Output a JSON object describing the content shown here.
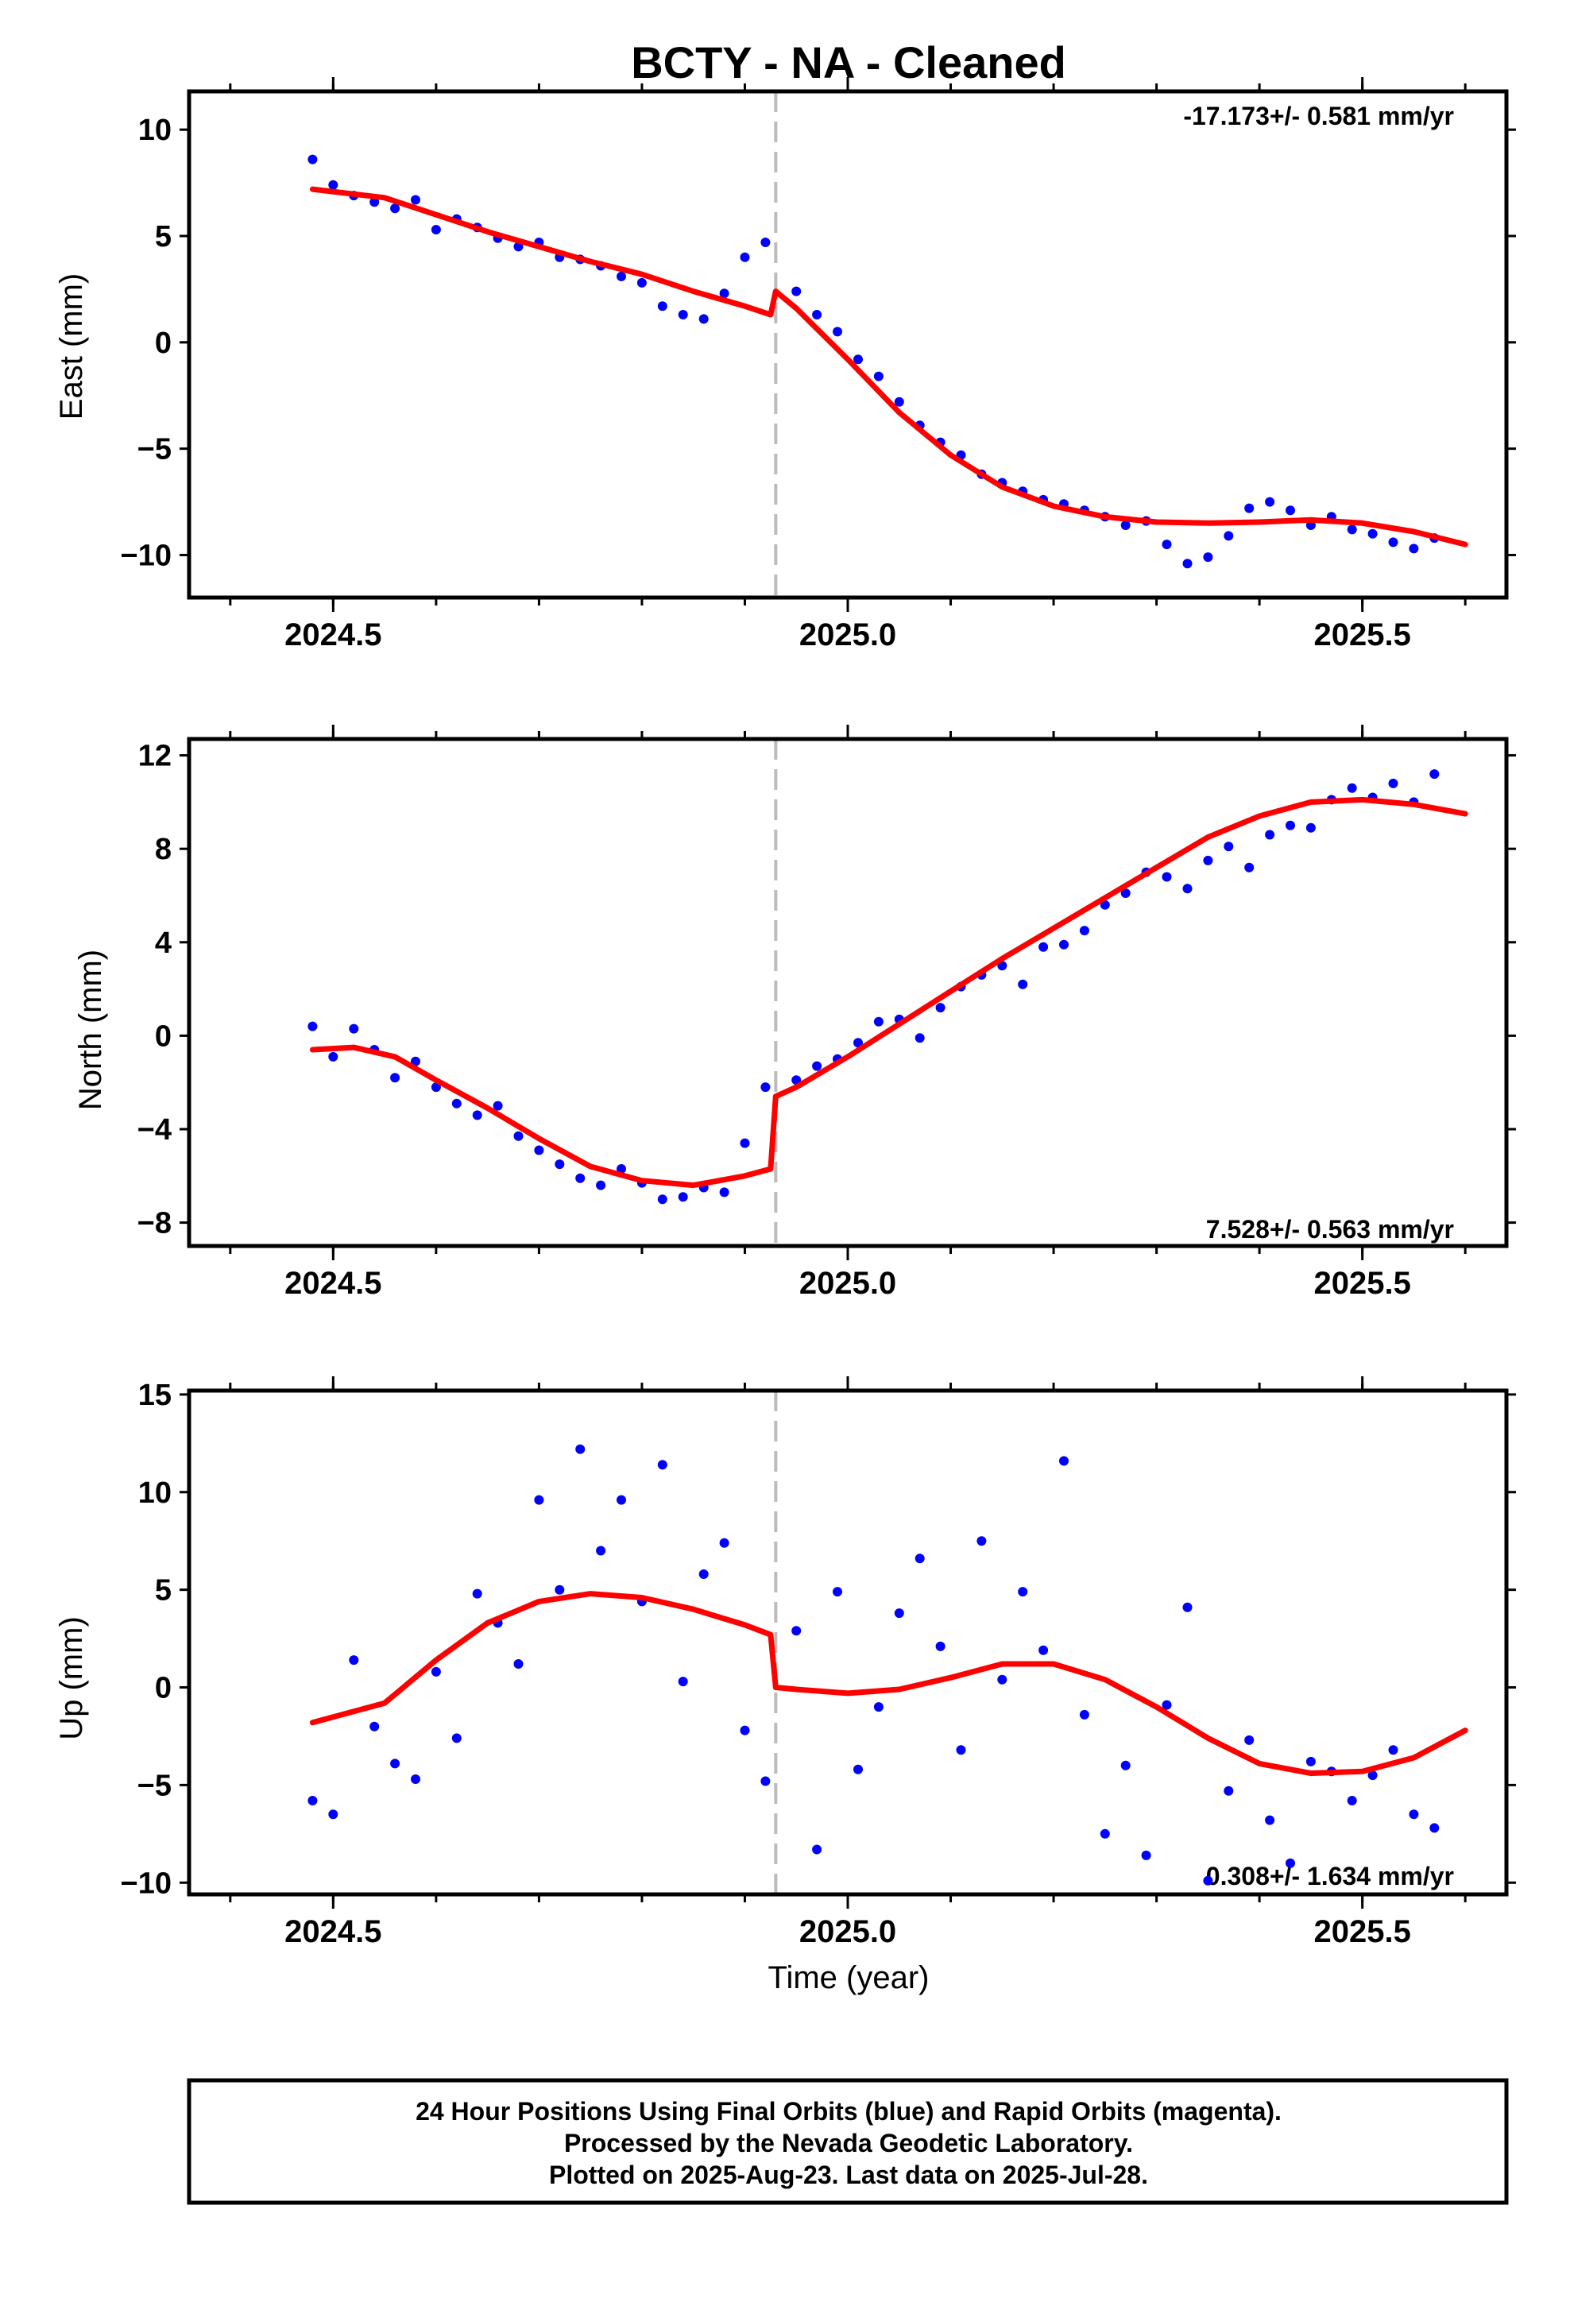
{
  "figure": {
    "title": "BCTY  - NA - Cleaned",
    "xlabel": "Time (year)",
    "footer": [
      "24 Hour Positions Using Final Orbits (blue) and Rapid Orbits (magenta).",
      "Processed by the Nevada Geodetic Laboratory.",
      "Plotted on 2025-Aug-23. Last data on 2025-Jul-28."
    ],
    "colors": {
      "points": "#0000ff",
      "model": "#ff0000",
      "event_line": "#bbbbbb",
      "frame": "#000000"
    }
  },
  "chart_data": [
    {
      "type": "scatter",
      "ylabel": "East (mm)",
      "rate_text": "-17.173+/- 0.581 mm/yr",
      "rate_position": "top-right",
      "xlim": [
        2024.36,
        2025.64
      ],
      "ylim": [
        -12.0,
        11.8
      ],
      "x_ticks": [
        2024.5,
        2025.0,
        2025.5
      ],
      "x_tick_labels": [
        "2024.5",
        "2025.0",
        "2025.5"
      ],
      "y_ticks": [
        -10,
        -5,
        0,
        5,
        10
      ],
      "y_tick_labels": [
        "−10",
        "−5",
        "0",
        "5",
        "10"
      ],
      "event_line_x": 2024.93,
      "grid": false,
      "series": [
        {
          "role": "observations",
          "x": [
            2024.48,
            2024.5,
            2024.52,
            2024.54,
            2024.56,
            2024.58,
            2024.6,
            2024.62,
            2024.64,
            2024.66,
            2024.68,
            2024.7,
            2024.72,
            2024.74,
            2024.76,
            2024.78,
            2024.8,
            2024.82,
            2024.84,
            2024.86,
            2024.88,
            2024.9,
            2024.92,
            2024.95,
            2024.97,
            2024.99,
            2025.01,
            2025.03,
            2025.05,
            2025.07,
            2025.09,
            2025.11,
            2025.13,
            2025.15,
            2025.17,
            2025.19,
            2025.21,
            2025.23,
            2025.25,
            2025.27,
            2025.29,
            2025.31,
            2025.33,
            2025.35,
            2025.37,
            2025.39,
            2025.41,
            2025.43,
            2025.45,
            2025.47,
            2025.49,
            2025.51,
            2025.53,
            2025.55,
            2025.57
          ],
          "y": [
            8.6,
            7.4,
            6.9,
            6.6,
            6.3,
            6.7,
            5.3,
            5.8,
            5.4,
            4.9,
            4.5,
            4.7,
            4.0,
            3.9,
            3.6,
            3.1,
            2.8,
            1.7,
            1.3,
            1.1,
            2.3,
            4.0,
            4.7,
            2.4,
            1.3,
            0.5,
            -0.8,
            -1.6,
            -2.8,
            -3.9,
            -4.7,
            -5.3,
            -6.2,
            -6.6,
            -7.0,
            -7.4,
            -7.6,
            -7.9,
            -8.2,
            -8.6,
            -8.4,
            -9.5,
            -10.4,
            -10.1,
            -9.1,
            -7.8,
            -7.5,
            -7.9,
            -8.6,
            -8.2,
            -8.8,
            -9.0,
            -9.4,
            -9.7,
            -9.2
          ]
        },
        {
          "role": "model",
          "x": [
            2024.48,
            2024.55,
            2024.6,
            2024.65,
            2024.7,
            2024.75,
            2024.8,
            2024.85,
            2024.9,
            2024.925,
            2024.93,
            2024.95,
            2025.0,
            2025.05,
            2025.1,
            2025.15,
            2025.2,
            2025.25,
            2025.3,
            2025.35,
            2025.4,
            2025.45,
            2025.5,
            2025.55,
            2025.6
          ],
          "y": [
            7.2,
            6.8,
            6.0,
            5.2,
            4.5,
            3.8,
            3.2,
            2.4,
            1.7,
            1.3,
            2.4,
            1.6,
            -0.8,
            -3.3,
            -5.3,
            -6.8,
            -7.7,
            -8.2,
            -8.45,
            -8.5,
            -8.45,
            -8.35,
            -8.5,
            -8.9,
            -9.5
          ]
        }
      ]
    },
    {
      "type": "scatter",
      "ylabel": "North (mm)",
      "rate_text": "7.528+/- 0.563 mm/yr",
      "rate_position": "bottom-right",
      "xlim": [
        2024.36,
        2025.64
      ],
      "ylim": [
        -9.0,
        12.7
      ],
      "x_ticks": [
        2024.5,
        2025.0,
        2025.5
      ],
      "x_tick_labels": [
        "2024.5",
        "2025.0",
        "2025.5"
      ],
      "y_ticks": [
        -8,
        -4,
        0,
        4,
        8,
        12
      ],
      "y_tick_labels": [
        "−8",
        "−4",
        "0",
        "4",
        "8",
        "12"
      ],
      "event_line_x": 2024.93,
      "grid": false,
      "series": [
        {
          "role": "observations",
          "x": [
            2024.48,
            2024.5,
            2024.52,
            2024.54,
            2024.56,
            2024.58,
            2024.6,
            2024.62,
            2024.64,
            2024.66,
            2024.68,
            2024.7,
            2024.72,
            2024.74,
            2024.76,
            2024.78,
            2024.8,
            2024.82,
            2024.84,
            2024.86,
            2024.88,
            2024.9,
            2024.92,
            2024.95,
            2024.97,
            2024.99,
            2025.01,
            2025.03,
            2025.05,
            2025.07,
            2025.09,
            2025.11,
            2025.13,
            2025.15,
            2025.17,
            2025.19,
            2025.21,
            2025.23,
            2025.25,
            2025.27,
            2025.29,
            2025.31,
            2025.33,
            2025.35,
            2025.37,
            2025.39,
            2025.41,
            2025.43,
            2025.45,
            2025.47,
            2025.49,
            2025.51,
            2025.53,
            2025.55,
            2025.57
          ],
          "y": [
            0.4,
            -0.9,
            0.3,
            -0.6,
            -1.8,
            -1.1,
            -2.2,
            -2.9,
            -3.4,
            -3.0,
            -4.3,
            -4.9,
            -5.5,
            -6.1,
            -6.4,
            -5.7,
            -6.3,
            -7.0,
            -6.9,
            -6.5,
            -6.7,
            -4.6,
            -2.2,
            -1.9,
            -1.3,
            -1.0,
            -0.3,
            0.6,
            0.7,
            -0.1,
            1.2,
            2.1,
            2.6,
            3.0,
            2.2,
            3.8,
            3.9,
            4.5,
            5.6,
            6.1,
            7.0,
            6.8,
            6.3,
            7.5,
            8.1,
            7.2,
            8.6,
            9.0,
            8.9,
            10.1,
            10.6,
            10.2,
            10.8,
            10.0,
            11.2
          ]
        },
        {
          "role": "model",
          "x": [
            2024.48,
            2024.52,
            2024.56,
            2024.6,
            2024.65,
            2024.7,
            2024.75,
            2024.8,
            2024.85,
            2024.9,
            2024.925,
            2024.93,
            2024.95,
            2025.0,
            2025.05,
            2025.1,
            2025.15,
            2025.2,
            2025.25,
            2025.3,
            2025.35,
            2025.4,
            2025.45,
            2025.5,
            2025.55,
            2025.6
          ],
          "y": [
            -0.6,
            -0.5,
            -0.9,
            -1.9,
            -3.1,
            -4.4,
            -5.6,
            -6.2,
            -6.4,
            -6.0,
            -5.7,
            -2.6,
            -2.2,
            -0.9,
            0.5,
            1.9,
            3.3,
            4.6,
            5.9,
            7.2,
            8.5,
            9.4,
            10.0,
            10.1,
            9.9,
            9.5
          ]
        }
      ]
    },
    {
      "type": "scatter",
      "ylabel": "Up (mm)",
      "rate_text": "0.308+/- 1.634 mm/yr",
      "rate_position": "bottom-right",
      "xlim": [
        2024.36,
        2025.64
      ],
      "ylim": [
        -10.6,
        15.2
      ],
      "x_ticks": [
        2024.5,
        2025.0,
        2025.5
      ],
      "x_tick_labels": [
        "2024.5",
        "2025.0",
        "2025.5"
      ],
      "y_ticks": [
        -10,
        -5,
        0,
        5,
        10,
        15
      ],
      "y_tick_labels": [
        "−10",
        "−5",
        "0",
        "5",
        "10",
        "15"
      ],
      "event_line_x": 2024.93,
      "grid": false,
      "series": [
        {
          "role": "observations",
          "x": [
            2024.48,
            2024.5,
            2024.52,
            2024.54,
            2024.56,
            2024.58,
            2024.6,
            2024.62,
            2024.64,
            2024.66,
            2024.68,
            2024.7,
            2024.72,
            2024.74,
            2024.76,
            2024.78,
            2024.8,
            2024.82,
            2024.84,
            2024.86,
            2024.88,
            2024.9,
            2024.92,
            2024.95,
            2024.97,
            2024.99,
            2025.01,
            2025.03,
            2025.05,
            2025.07,
            2025.09,
            2025.11,
            2025.13,
            2025.15,
            2025.17,
            2025.19,
            2025.21,
            2025.23,
            2025.25,
            2025.27,
            2025.29,
            2025.31,
            2025.33,
            2025.35,
            2025.37,
            2025.39,
            2025.41,
            2025.43,
            2025.45,
            2025.47,
            2025.49,
            2025.51,
            2025.53,
            2025.55,
            2025.57
          ],
          "y": [
            -5.8,
            -6.5,
            1.4,
            -2.0,
            -3.9,
            -4.7,
            0.8,
            -2.6,
            4.8,
            3.3,
            1.2,
            9.6,
            5.0,
            12.2,
            7.0,
            9.6,
            4.4,
            11.4,
            0.3,
            5.8,
            7.4,
            -2.2,
            -4.8,
            2.9,
            -8.3,
            4.9,
            -4.2,
            -1.0,
            3.8,
            6.6,
            2.1,
            -3.2,
            7.5,
            0.4,
            4.9,
            1.9,
            11.6,
            -1.4,
            -7.5,
            -4.0,
            -8.6,
            -0.9,
            4.1,
            -9.9,
            -5.3,
            -2.7,
            -6.8,
            -9.0,
            -3.8,
            -4.3,
            -5.8,
            -4.5,
            -3.2,
            -6.5,
            -7.2
          ]
        },
        {
          "role": "model",
          "x": [
            2024.48,
            2024.55,
            2024.6,
            2024.65,
            2024.7,
            2024.75,
            2024.8,
            2024.85,
            2024.9,
            2024.925,
            2024.93,
            2024.95,
            2025.0,
            2025.05,
            2025.1,
            2025.15,
            2025.2,
            2025.25,
            2025.3,
            2025.35,
            2025.4,
            2025.45,
            2025.5,
            2025.55,
            2025.6
          ],
          "y": [
            -1.8,
            -0.8,
            1.4,
            3.3,
            4.4,
            4.8,
            4.6,
            4.0,
            3.2,
            2.7,
            0.0,
            -0.1,
            -0.3,
            -0.1,
            0.5,
            1.2,
            1.2,
            0.4,
            -1.0,
            -2.6,
            -3.9,
            -4.4,
            -4.3,
            -3.6,
            -2.2
          ]
        }
      ]
    }
  ]
}
